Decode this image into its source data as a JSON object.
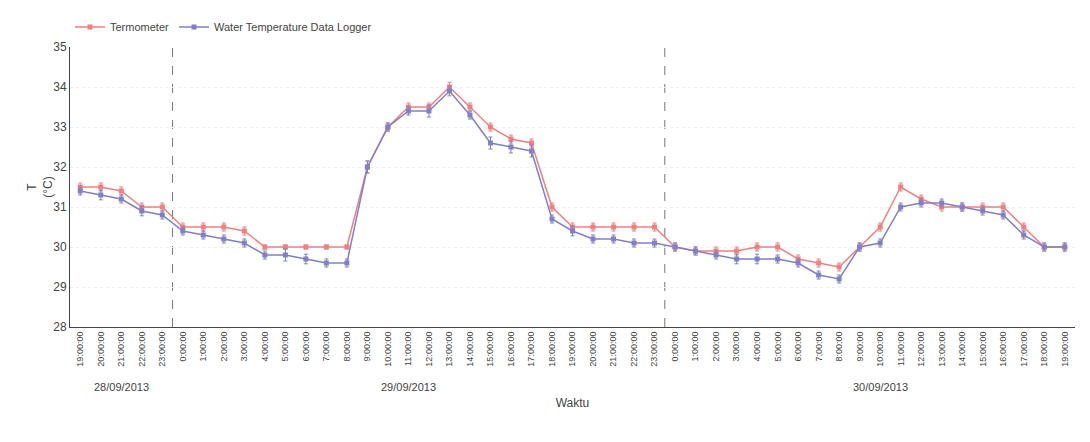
{
  "chart_data": {
    "type": "line",
    "xlabel": "Waktu",
    "ylabel": "T\n(°C)",
    "categories": [
      "19:00:00",
      "20:00:00",
      "21:00:00",
      "22:00:00",
      "23:00:00",
      "0:00:00",
      "1:00:00",
      "2:00:00",
      "3:00:00",
      "4:00:00",
      "5:00:00",
      "6:00:00",
      "7:00:00",
      "8:00:00",
      "9:00:00",
      "10:00:00",
      "11:00:00",
      "12:00:00",
      "13:00:00",
      "14:00:00",
      "15:00:00",
      "16:00:00",
      "17:00:00",
      "18:00:00",
      "19:00:00",
      "20:00:00",
      "21:00:00",
      "22:00:00",
      "23:00:00",
      "0:00:00",
      "1:00:00",
      "2:00:00",
      "3:00:00",
      "4:00:00",
      "5:00:00",
      "6:00:00",
      "7:00:00",
      "8:00:00",
      "9:00:00",
      "10:00:00",
      "11:00:00",
      "12:00:00",
      "13:00:00",
      "14:00:00",
      "15:00:00",
      "16:00:00",
      "17:00:00",
      "18:00:00",
      "19:00:00"
    ],
    "series": [
      {
        "name": "Termometer",
        "color": "#f08080",
        "marker": "square",
        "values": [
          31.5,
          31.5,
          31.4,
          31.0,
          31.0,
          30.5,
          30.5,
          30.5,
          30.4,
          30.0,
          30.0,
          30.0,
          30.0,
          30.0,
          32.0,
          33.0,
          33.5,
          33.5,
          34.0,
          33.5,
          33.0,
          32.7,
          32.6,
          31.0,
          30.5,
          30.5,
          30.5,
          30.5,
          30.5,
          30.0,
          29.9,
          29.9,
          29.9,
          30.0,
          30.0,
          29.7,
          29.6,
          29.5,
          30.0,
          30.5,
          31.5,
          31.2,
          31.0,
          31.0,
          31.0,
          31.0,
          30.5,
          30.0,
          30.0
        ],
        "yerr": [
          0.1,
          0.1,
          0.1,
          0.1,
          0.1,
          0.1,
          0.1,
          0.1,
          0.1,
          0.05,
          0.05,
          0.05,
          0.05,
          0.05,
          0.15,
          0.1,
          0.1,
          0.1,
          0.12,
          0.1,
          0.1,
          0.1,
          0.1,
          0.1,
          0.1,
          0.1,
          0.1,
          0.1,
          0.1,
          0.1,
          0.1,
          0.1,
          0.1,
          0.1,
          0.1,
          0.1,
          0.1,
          0.1,
          0.1,
          0.1,
          0.1,
          0.1,
          0.1,
          0.1,
          0.1,
          0.1,
          0.1,
          0.1,
          0.1
        ]
      },
      {
        "name": "Water Temperature Data Logger",
        "color": "#8080c8",
        "marker": "square",
        "values": [
          31.4,
          31.3,
          31.2,
          30.9,
          30.8,
          30.4,
          30.3,
          30.2,
          30.1,
          29.8,
          29.8,
          29.7,
          29.6,
          29.6,
          32.0,
          33.0,
          33.4,
          33.4,
          33.9,
          33.3,
          32.6,
          32.5,
          32.4,
          30.7,
          30.4,
          30.2,
          30.2,
          30.1,
          30.1,
          30.0,
          29.9,
          29.8,
          29.7,
          29.7,
          29.7,
          29.6,
          29.3,
          29.2,
          30.0,
          30.1,
          31.0,
          31.1,
          31.1,
          31.0,
          30.9,
          30.8,
          30.3,
          30.0,
          30.0
        ],
        "yerr": [
          0.1,
          0.12,
          0.1,
          0.12,
          0.1,
          0.1,
          0.1,
          0.1,
          0.1,
          0.1,
          0.15,
          0.12,
          0.1,
          0.1,
          0.15,
          0.1,
          0.1,
          0.15,
          0.12,
          0.1,
          0.15,
          0.15,
          0.15,
          0.1,
          0.12,
          0.1,
          0.1,
          0.1,
          0.1,
          0.1,
          0.1,
          0.1,
          0.12,
          0.12,
          0.1,
          0.1,
          0.1,
          0.1,
          0.1,
          0.1,
          0.1,
          0.1,
          0.1,
          0.1,
          0.1,
          0.1,
          0.1,
          0.1,
          0.1
        ]
      }
    ],
    "ylim": [
      28,
      35
    ],
    "yticks": [
      28,
      29,
      30,
      31,
      32,
      33,
      34,
      35
    ],
    "grid": "y",
    "legend": "upper left",
    "annotations": [
      {
        "text": "28/09/2013",
        "x": 2
      },
      {
        "text": "29/09/2013",
        "x": 16
      },
      {
        "text": "30/09/2013",
        "x": 39
      }
    ]
  }
}
